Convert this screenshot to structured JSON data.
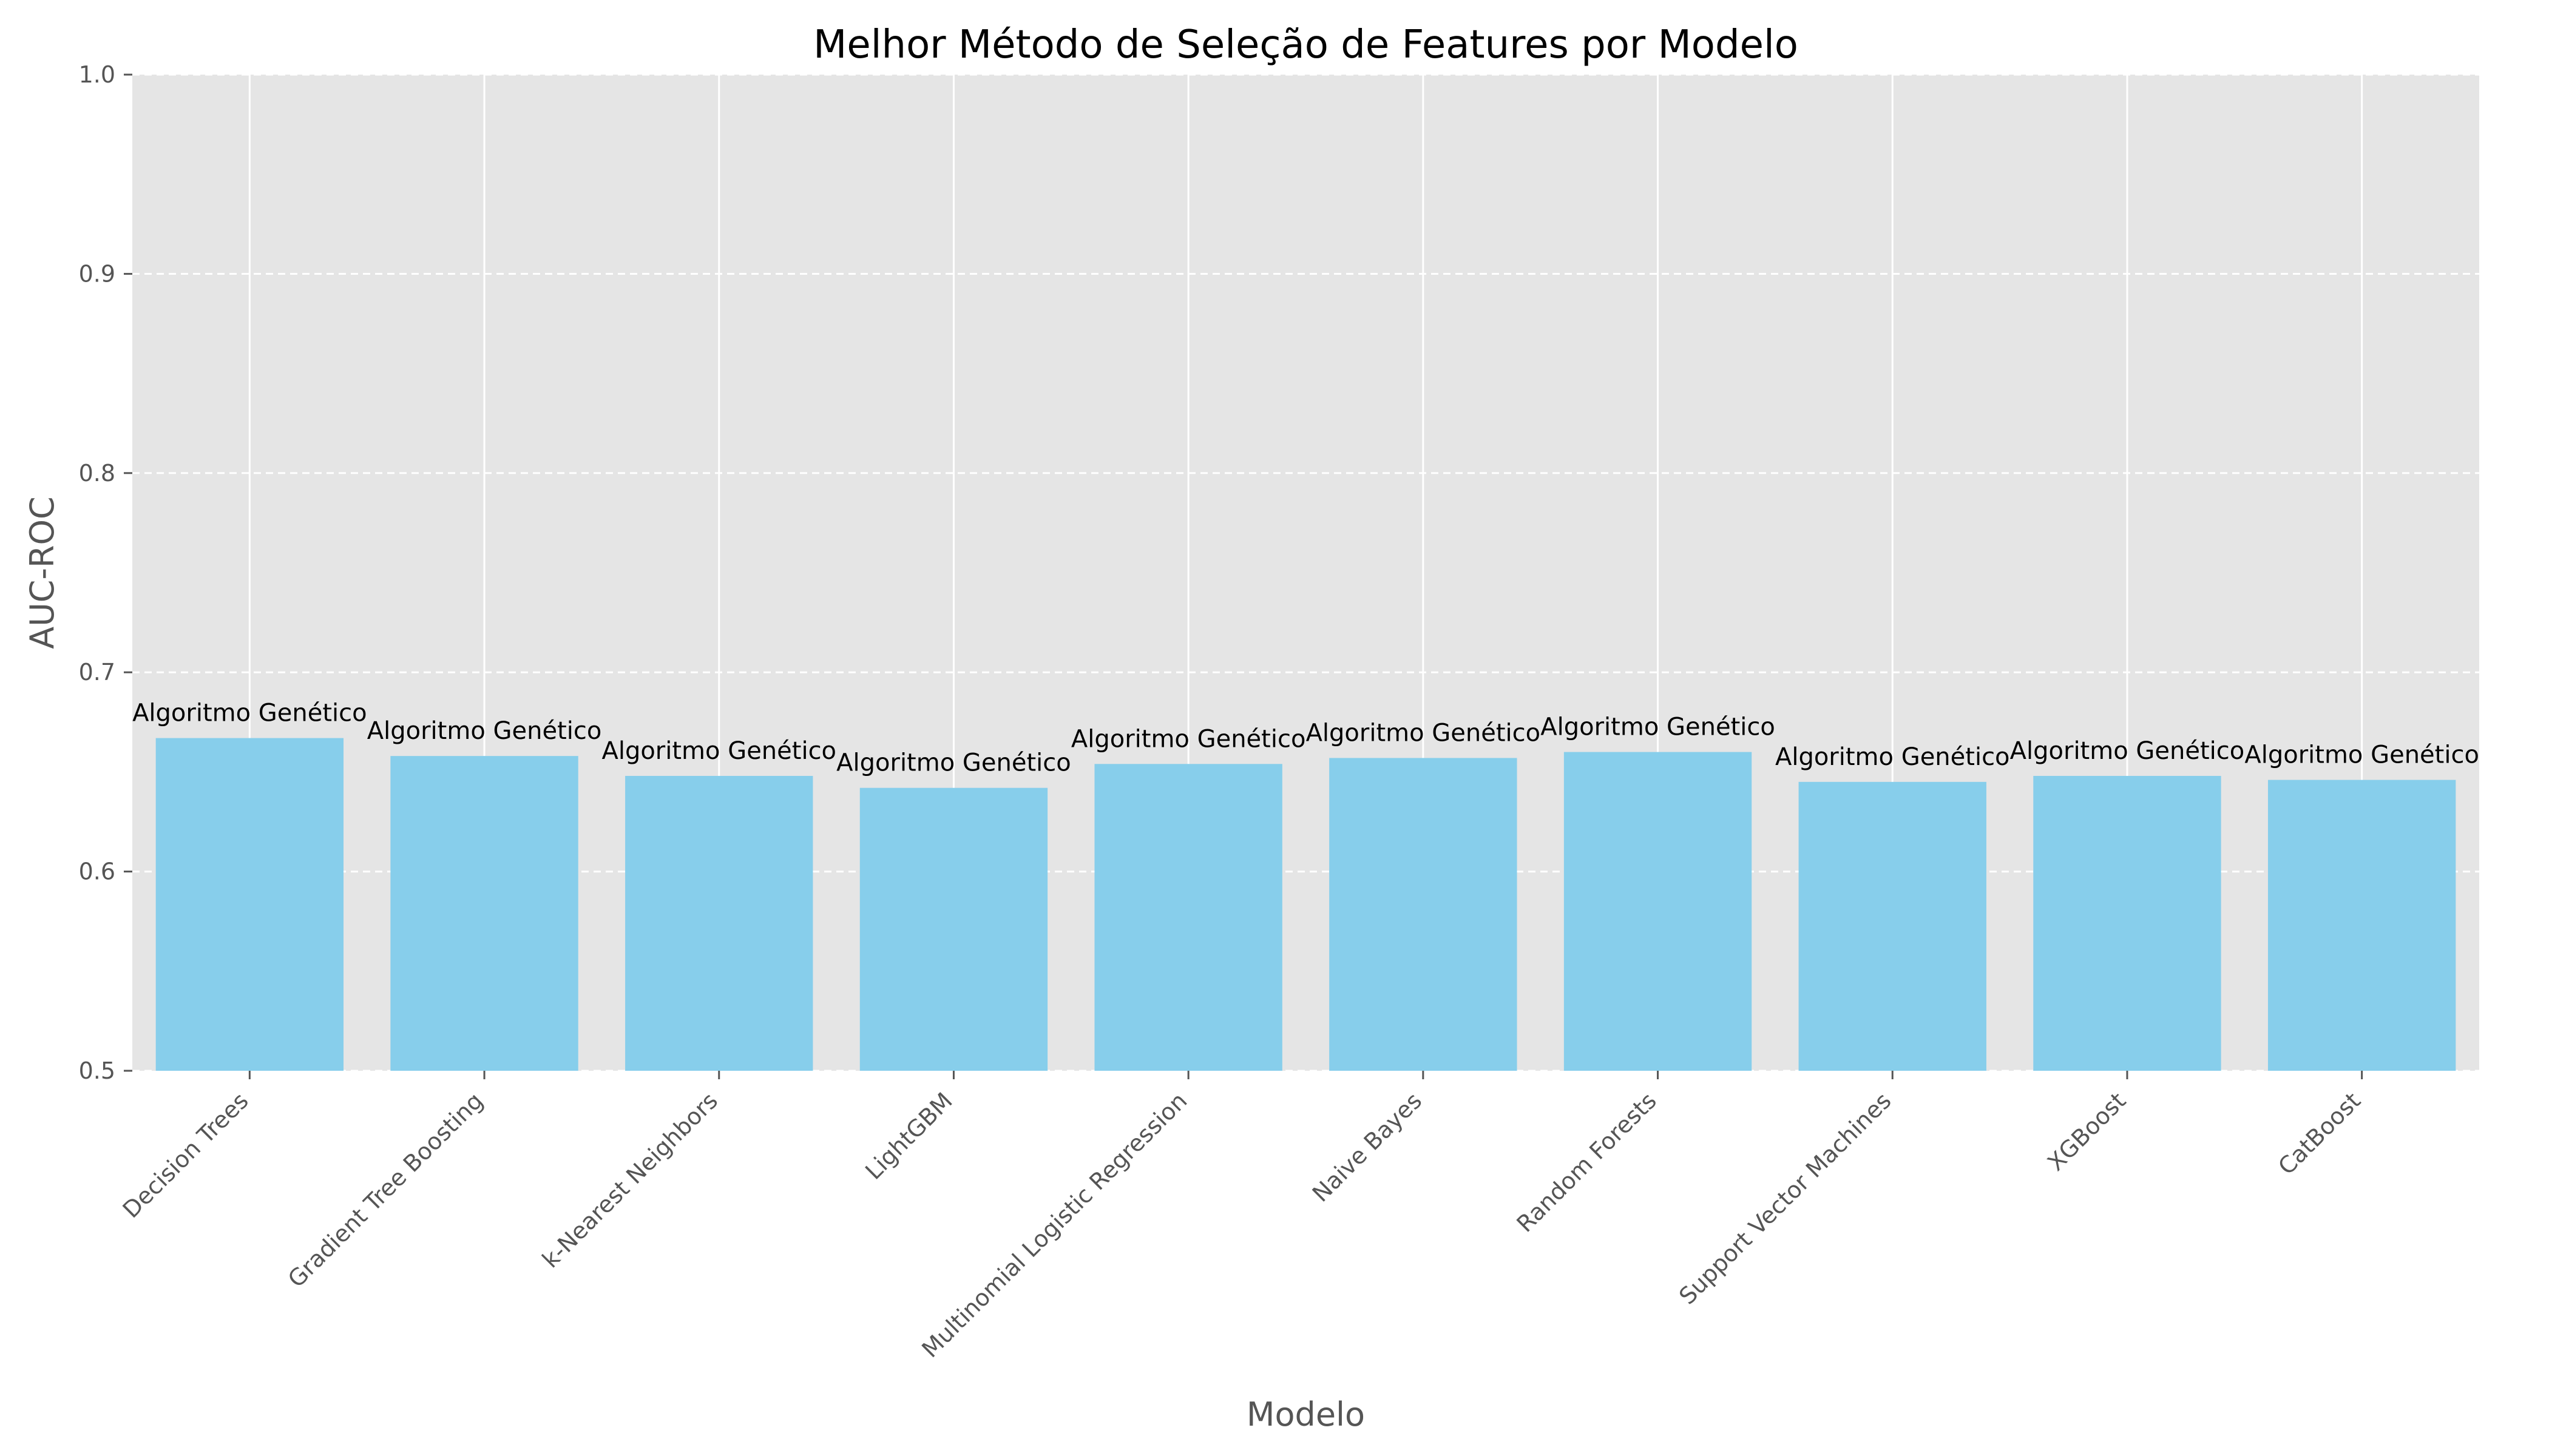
{
  "chart_data": {
    "type": "bar",
    "title": "Melhor Método de Seleção de Features por Modelo",
    "xlabel": "Modelo",
    "ylabel": "AUC-ROC",
    "ylim": [
      0.5,
      1.0
    ],
    "yticks": [
      0.5,
      0.6,
      0.7,
      0.8,
      0.9,
      1.0
    ],
    "categories": [
      "Decision Trees",
      "Gradient Tree Boosting",
      "k-Nearest Neighbors",
      "LightGBM",
      "Multinomial Logistic Regression",
      "Naive Bayes",
      "Random Forests",
      "Support Vector Machines",
      "XGBoost",
      "CatBoost"
    ],
    "values": [
      0.667,
      0.658,
      0.648,
      0.642,
      0.654,
      0.657,
      0.66,
      0.645,
      0.648,
      0.646
    ],
    "bar_labels": [
      "Algoritmo Genético",
      "Algoritmo Genético",
      "Algoritmo Genético",
      "Algoritmo Genético",
      "Algoritmo Genético",
      "Algoritmo Genético",
      "Algoritmo Genético",
      "Algoritmo Genético",
      "Algoritmo Genético",
      "Algoritmo Genético"
    ],
    "bar_color": "#87ceeb",
    "plot_background": "#e5e5e5",
    "grid": true
  }
}
